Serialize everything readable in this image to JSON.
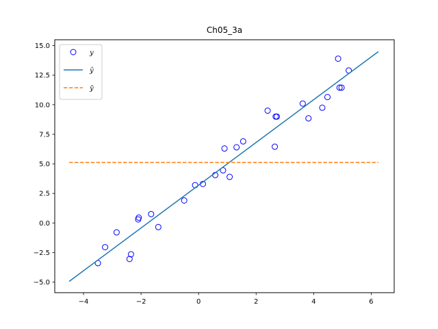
{
  "chart_data": {
    "type": "scatter",
    "title": "Ch05_3a",
    "xlabel": "",
    "ylabel": "",
    "xlim": [
      -5.0,
      6.8
    ],
    "ylim": [
      -5.9,
      15.5
    ],
    "xticks": [
      -4,
      -2,
      0,
      2,
      4,
      6
    ],
    "yticks": [
      -5.0,
      -2.5,
      0.0,
      2.5,
      5.0,
      7.5,
      10.0,
      12.5,
      15.0
    ],
    "xtick_labels": [
      "−4",
      "−2",
      "0",
      "2",
      "4",
      "6"
    ],
    "ytick_labels": [
      "−5.0",
      "−2.5",
      "0.0",
      "2.5",
      "5.0",
      "7.5",
      "10.0",
      "12.5",
      "15.0"
    ],
    "grid": false,
    "legend_position": "top-left",
    "series": [
      {
        "name": "y",
        "kind": "scatter",
        "marker": "open-circle",
        "color": "#0000ff",
        "points": [
          [
            -3.5,
            -3.4
          ],
          [
            -3.25,
            -2.05
          ],
          [
            -2.85,
            -0.8
          ],
          [
            -2.4,
            -3.05
          ],
          [
            -2.35,
            -2.65
          ],
          [
            -2.1,
            0.3
          ],
          [
            -2.08,
            0.45
          ],
          [
            -1.65,
            0.75
          ],
          [
            -1.4,
            -0.35
          ],
          [
            -0.5,
            1.9
          ],
          [
            -0.12,
            3.2
          ],
          [
            0.15,
            3.3
          ],
          [
            0.58,
            4.05
          ],
          [
            0.85,
            4.45
          ],
          [
            0.9,
            6.3
          ],
          [
            1.08,
            3.9
          ],
          [
            1.32,
            6.4
          ],
          [
            1.55,
            6.9
          ],
          [
            2.4,
            9.5
          ],
          [
            2.65,
            6.45
          ],
          [
            2.68,
            9.0
          ],
          [
            2.72,
            9.0
          ],
          [
            3.62,
            10.1
          ],
          [
            3.82,
            8.85
          ],
          [
            4.3,
            9.75
          ],
          [
            4.48,
            10.65
          ],
          [
            4.85,
            13.9
          ],
          [
            4.9,
            11.45
          ],
          [
            4.97,
            11.45
          ],
          [
            5.22,
            12.9
          ]
        ]
      },
      {
        "name": "ŷ",
        "kind": "line",
        "style": "solid",
        "color": "#1f77b4",
        "points": [
          [
            -4.5,
            -4.95
          ],
          [
            6.25,
            14.5
          ]
        ]
      },
      {
        "name": "ȳ",
        "kind": "line",
        "style": "dashed",
        "color": "#ff7f0e",
        "points": [
          [
            -4.5,
            5.12
          ],
          [
            6.25,
            5.12
          ]
        ]
      }
    ]
  }
}
